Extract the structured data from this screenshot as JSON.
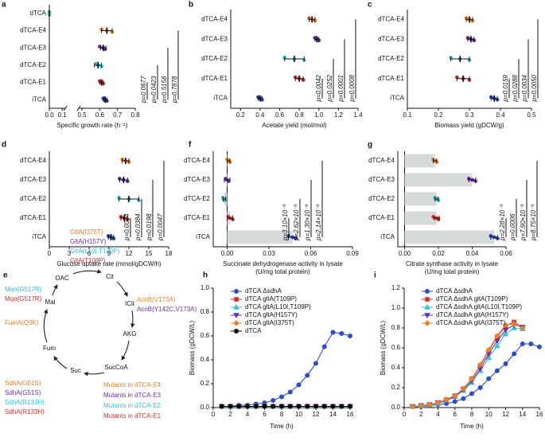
{
  "chart_data": [
    {
      "type": "dot",
      "label": "a",
      "xlabel": "Specific growth rate (h⁻¹)",
      "categories": [
        "dTCA",
        "dTCA-E4",
        "dTCA-E3",
        "dTCA-E2",
        "dTCA-E1",
        "iTCA"
      ],
      "colors": [
        "#38d6c4",
        "#f07f1f",
        "#6a2fb5",
        "#2ec4d6",
        "#e42a2a",
        "#2a4bd7"
      ],
      "values": [
        0,
        0.64,
        0.62,
        0.59,
        0.61,
        0.63
      ],
      "errors": [
        0,
        0.03,
        0.015,
        0.02,
        0.01,
        0.01
      ],
      "points": [
        [
          0,
          0,
          0
        ],
        [
          0.61,
          0.64,
          0.67
        ],
        [
          0.6,
          0.62,
          0.63
        ],
        [
          0.58,
          0.59,
          0.61
        ],
        [
          0.6,
          0.61,
          0.62
        ],
        [
          0.62,
          0.63,
          0.64
        ]
      ],
      "xlim": [
        0,
        0.8
      ],
      "x_break": [
        0.1,
        0.5
      ],
      "xticks": [
        {
          "value": 0,
          "label": "0.0"
        },
        0.1,
        0.5,
        0.6,
        0.7,
        0.8
      ],
      "annotations": [
        "p=0.7878",
        "p=0.5158",
        "p=0.0423",
        "p=0.0677"
      ]
    },
    {
      "type": "dot",
      "label": "b",
      "xlabel": "Acetate yield (mol/mol)",
      "categories": [
        "dTCA-E4",
        "dTCA-E3",
        "dTCA-E2",
        "dTCA-E1",
        "iTCA"
      ],
      "colors": [
        "#f07f1f",
        "#6a2fb5",
        "#2ec4d6",
        "#e42a2a",
        "#2a4bd7"
      ],
      "values": [
        0.93,
        0.98,
        0.75,
        0.8,
        0.4
      ],
      "errors": [
        0.03,
        0.02,
        0.1,
        0.04,
        0.02
      ],
      "points": [
        [
          0.9,
          0.93,
          0.96
        ],
        [
          0.96,
          0.98,
          1.0
        ],
        [
          0.65,
          0.75,
          0.85
        ],
        [
          0.76,
          0.8,
          0.84
        ],
        [
          0.38,
          0.4,
          0.42
        ]
      ],
      "xlim": [
        0.1,
        1.4
      ],
      "xticks": [
        0.2,
        0.4,
        0.6,
        0.8,
        {
          "value": 1,
          "label": "1.0"
        },
        1.2,
        1.4
      ],
      "annotations": [
        "p=0.0008",
        "p=0.0001",
        "p=0.0252",
        "p=0.0042"
      ]
    },
    {
      "type": "dot",
      "label": "c",
      "xlabel": "Biomass yield (gDCW/g)",
      "categories": [
        "dTCA-E4",
        "dTCA-E3",
        "dTCA-E2",
        "dTCA-E1",
        "iTCA"
      ],
      "colors": [
        "#f07f1f",
        "#6a2fb5",
        "#2ec4d6",
        "#e42a2a",
        "#2a4bd7"
      ],
      "values": [
        0.3,
        0.305,
        0.27,
        0.28,
        0.38
      ],
      "errors": [
        0.01,
        0.01,
        0.03,
        0.02,
        0.01
      ],
      "points": [
        [
          0.29,
          0.3,
          0.31
        ],
        [
          0.295,
          0.305,
          0.315
        ],
        [
          0.24,
          0.27,
          0.3
        ],
        [
          0.26,
          0.28,
          0.3
        ],
        [
          0.37,
          0.38,
          0.39
        ]
      ],
      "xlim": [
        0.1,
        0.5
      ],
      "xticks": [
        0.1,
        0.2,
        0.3,
        0.4,
        0.5
      ],
      "annotations": [
        "p=0.0050",
        "p=0.0034",
        "p=0.0288",
        "p=0.0159"
      ]
    },
    {
      "type": "dot",
      "label": "d",
      "xlabel": "Glucose uptake rate (mmol/gDCW/h)",
      "categories": [
        "dTCA-E4",
        "dTCA-E3",
        "dTCA-E2",
        "dTCA-E1",
        "iTCA"
      ],
      "colors": [
        "#f07f1f",
        "#6a2fb5",
        "#2ec4d6",
        "#e42a2a",
        "#2a4bd7"
      ],
      "values": [
        11.5,
        11.2,
        12,
        11.3,
        9.3
      ],
      "errors": [
        0.5,
        0.6,
        1.5,
        0.5,
        0.4
      ],
      "points": [
        [
          11,
          11.5,
          12
        ],
        [
          10.6,
          11.2,
          11.8
        ],
        [
          10.5,
          12,
          13.5
        ],
        [
          10.8,
          11.3,
          11.8
        ],
        [
          8.9,
          9.3,
          9.7
        ]
      ],
      "xlim": [
        0,
        18
      ],
      "xticks": [
        0,
        3,
        6,
        9,
        12,
        15,
        18
      ],
      "annotations": [
        "p=0.0047",
        "p=0.0198",
        "p=0.0384",
        "p=0.0074"
      ]
    },
    {
      "type": "bar",
      "label": "f",
      "xlabel": [
        "Succinate dehydrogenase activity in lysate",
        "(U/mg total protein)"
      ],
      "categories": [
        "dTCA-E4",
        "dTCA-E3",
        "dTCA-E2",
        "dTCA-E1",
        "iTCA"
      ],
      "colors": [
        "#f07f1f",
        "#6a2fb5",
        "#2ec4d6",
        "#e42a2a",
        "#2a4bd7"
      ],
      "bar_color": "#d5dbd8",
      "values": [
        0.001,
        0,
        -0.002,
        0.002,
        0.047
      ],
      "errors": [
        0.001,
        0.002,
        0.001,
        0.002,
        0.003
      ],
      "points": [
        [
          0,
          0.001,
          0.002
        ],
        [
          -0.001,
          0,
          0.001
        ],
        [
          -0.003,
          -0.002,
          -0.002
        ],
        [
          0.001,
          0.002,
          0.004
        ],
        [
          0.044,
          0.047,
          0.049
        ]
      ],
      "xlim": [
        -0.01,
        0.09
      ],
      "xticks": [
        {
          "value": 0,
          "label": "0.00"
        },
        {
          "value": 0.03,
          "label": "0.03"
        },
        {
          "value": 0.06,
          "label": "0.06"
        },
        {
          "value": 0.09,
          "label": "0.09"
        }
      ],
      "annotations": [
        "p=2.14×10⁻⁶",
        "p=1.30×10⁻⁶",
        "p=2.62×10⁻⁶",
        "p=3.10×10⁻⁶"
      ]
    },
    {
      "type": "bar",
      "label": "g",
      "xlabel": [
        "Citrate synthase activity in lysate",
        "(U/mg total protein)"
      ],
      "categories": [
        "dTCA-E4",
        "dTCA-E3",
        "dTCA-E2",
        "dTCA-E1",
        "iTCA"
      ],
      "colors": [
        "#f07f1f",
        "#6a2fb5",
        "#2ec4d6",
        "#e42a2a",
        "#2a4bd7"
      ],
      "bar_color": "#d5dbd8",
      "values": [
        0.018,
        0.04,
        0.019,
        0.019,
        0.053
      ],
      "errors": [
        0.001,
        0.002,
        0.001,
        0.0015,
        0.002
      ],
      "points": [
        [
          0.017,
          0.018,
          0.019
        ],
        [
          0.038,
          0.04,
          0.042
        ],
        [
          0.018,
          0.019,
          0.02
        ],
        [
          0.017,
          0.019,
          0.02
        ],
        [
          0.051,
          0.053,
          0.055
        ]
      ],
      "xlim": [
        -0.004,
        0.06
      ],
      "xticks": [
        {
          "value": 0,
          "label": "0.00"
        },
        {
          "value": 0.02,
          "label": "0.02"
        },
        {
          "value": 0.04,
          "label": "0.04"
        },
        {
          "value": 0.06,
          "label": "0.06"
        }
      ],
      "annotations": [
        "p=8.75×10⁻⁶",
        "p=7.90×10⁻⁵",
        "p=0.0006",
        "p=2.28×10⁻⁵"
      ]
    },
    {
      "type": "line",
      "label": "h",
      "xlabel": "Time (h)",
      "ylabel": "Biomass (gDCW/L)",
      "legend": "upper left",
      "x": [
        1,
        2,
        3,
        4,
        5,
        6,
        7,
        8,
        9,
        10,
        11,
        12,
        13,
        14,
        15,
        16
      ],
      "series": [
        {
          "name": "dTCA ΔsdhA",
          "color": "#2a4bd7",
          "marker": "circle",
          "values": [
            0.01,
            0.01,
            0.02,
            0.02,
            0.03,
            0.04,
            0.06,
            0.09,
            0.13,
            0.19,
            0.27,
            0.37,
            0.51,
            0.63,
            0.62,
            0.6
          ]
        },
        {
          "name": "dTCA gltA(T109P)",
          "color": "#e42a2a",
          "marker": "square",
          "values": [
            0.01,
            0.01,
            0.01,
            0.01,
            0.01,
            0.01,
            0.01,
            0.01,
            0.01,
            0.01,
            0.01,
            0.01,
            0.01,
            0.01,
            0.01,
            0.01
          ]
        },
        {
          "name": "dTCA gltA(L10I,T109P)",
          "color": "#2ec4d6",
          "marker": "triangle",
          "values": [
            0.01,
            0.01,
            0.01,
            0.01,
            0.01,
            0.01,
            0.01,
            0.01,
            0.01,
            0.01,
            0.01,
            0.01,
            0.01,
            0.01,
            0.01,
            0.01
          ]
        },
        {
          "name": "dTCA gltA(H157Y)",
          "color": "#6a2fb5",
          "marker": "triangle-down",
          "values": [
            0.01,
            0.01,
            0.01,
            0.01,
            0.01,
            0.01,
            0.01,
            0.01,
            0.01,
            0.01,
            0.01,
            0.01,
            0.01,
            0.01,
            0.01,
            0.01
          ]
        },
        {
          "name": "dTCA gltA(I375T)",
          "color": "#f07f1f",
          "marker": "diamond",
          "values": [
            0.01,
            0.01,
            0.01,
            0.01,
            0.01,
            0.01,
            0.01,
            0.01,
            0.01,
            0.01,
            0.01,
            0.01,
            0.01,
            0.01,
            0.01,
            0.01
          ]
        },
        {
          "name": "dTCA",
          "color": "#000000",
          "marker": "circle",
          "values": [
            0.01,
            0.01,
            0.01,
            0.01,
            0.01,
            0.01,
            0.01,
            0.01,
            0.01,
            0.01,
            0.01,
            0.01,
            0.01,
            0.01,
            0.01,
            0.01
          ]
        }
      ],
      "xlim": [
        0,
        16
      ],
      "xticks": [
        0,
        2,
        4,
        6,
        8,
        10,
        12,
        14,
        16
      ],
      "ylim": [
        0,
        1
      ],
      "yticks": [
        {
          "value": 0,
          "label": "0.0"
        },
        0.2,
        0.4,
        0.6,
        0.8,
        {
          "value": 1,
          "label": "1.0"
        }
      ]
    },
    {
      "type": "line",
      "label": "i",
      "xlabel": "Time (h)",
      "ylabel": "Biomass (gDCW/L)",
      "legend": "upper left",
      "x": [
        1,
        2,
        3,
        4,
        5,
        6,
        7,
        8,
        9,
        10,
        11,
        12,
        13,
        14,
        15,
        16
      ],
      "series": [
        {
          "name": "dTCA ΔsdhA",
          "color": "#2a4bd7",
          "marker": "circle",
          "values": [
            0.01,
            0.01,
            0.02,
            0.03,
            0.04,
            0.06,
            0.09,
            0.14,
            0.2,
            0.29,
            0.37,
            0.44,
            0.54,
            0.64,
            0.64,
            0.61
          ]
        },
        {
          "name": "dTCA ΔsdhA gltA(T109P)",
          "color": "#e42a2a",
          "marker": "square",
          "values": [
            0.01,
            0.02,
            0.03,
            0.05,
            0.08,
            0.12,
            0.19,
            0.29,
            0.42,
            0.57,
            0.71,
            0.82,
            0.86,
            0.8,
            null,
            null
          ]
        },
        {
          "name": "dTCA ΔsdhA gltA(L10I,T109P)",
          "color": "#2ec4d6",
          "marker": "triangle",
          "values": [
            0.01,
            0.02,
            0.03,
            0.04,
            0.07,
            0.11,
            0.17,
            0.25,
            0.37,
            0.5,
            0.62,
            0.74,
            0.8,
            0.79,
            null,
            null
          ]
        },
        {
          "name": "dTCA ΔsdhA gltA(H157Y)",
          "color": "#6a2fb5",
          "marker": "triangle-down",
          "values": [
            0.01,
            0.02,
            0.03,
            0.05,
            0.07,
            0.11,
            0.18,
            0.27,
            0.39,
            0.54,
            0.67,
            0.78,
            0.83,
            0.81,
            null,
            null
          ]
        },
        {
          "name": "dTCA ΔsdhA gltA(I375T)",
          "color": "#f07f1f",
          "marker": "diamond",
          "values": [
            0.01,
            0.02,
            0.03,
            0.05,
            0.08,
            0.12,
            0.19,
            0.29,
            0.43,
            0.58,
            0.72,
            0.83,
            0.84,
            0.8,
            null,
            null
          ]
        }
      ],
      "xlim": [
        0,
        16
      ],
      "xticks": [
        0,
        2,
        4,
        6,
        8,
        10,
        12,
        14,
        16
      ],
      "ylim": [
        0,
        1.2
      ],
      "yticks": [
        {
          "value": 0,
          "label": "0.0"
        },
        0.2,
        0.4,
        0.6,
        0.8,
        {
          "value": 1,
          "label": "1.0"
        },
        1.2
      ]
    }
  ],
  "diagram": {
    "label": "e",
    "metabolites": [
      "OAC",
      "Cit",
      "ICit",
      "AKG",
      "SucCoA",
      "Suc",
      "Fum",
      "Mal"
    ],
    "gltA": [
      "GltA(I375T)",
      "GltA(H157Y)",
      "GltA(L10I,T109P)",
      "GltA(T109P)"
    ],
    "mqo": [
      "Mqo(G517R)",
      "Mqo(G517R)"
    ],
    "fumA": [
      "FumA(Q9K)"
    ],
    "sdhA": [
      "SdhA(G51S)",
      "SdhA(G51S)",
      "SdhA(R133H)",
      "SdhA(R133H)"
    ],
    "acnB": [
      "AcnB(V173A)",
      "AcnB(Y142C,V173A)"
    ],
    "legend": [
      "Mutants in dTCA-E4",
      "Mutants in dTCA-E3",
      "Mutants in dTCA-E2",
      "Mutants in dTCA-E1"
    ]
  }
}
